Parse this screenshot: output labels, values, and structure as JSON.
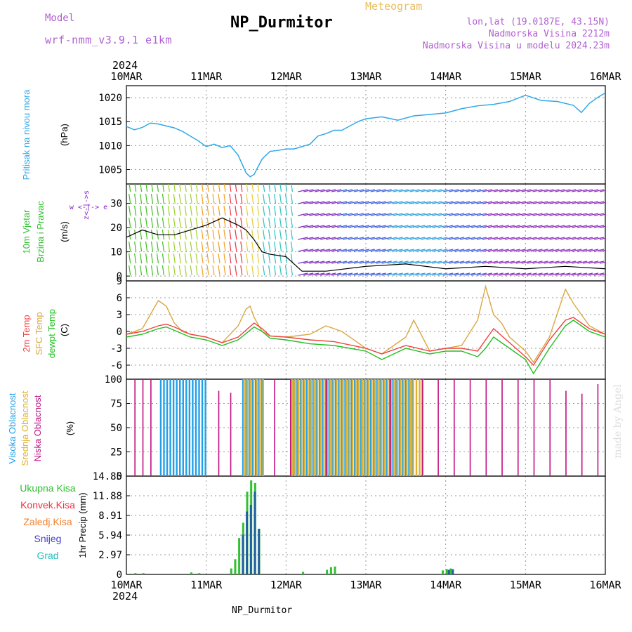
{
  "header": {
    "model_label": "Model",
    "model": "wrf-nmm_v3.9.1 e1km",
    "title": "NP_Durmitor",
    "chart_type": "Meteogram",
    "lonlat": "lon,lat (19.0187E, 43.15N)",
    "elevation": "Nadmorska Visina 2212m",
    "elevation_model": "Nadmorska Visina u modelu 2024.23m"
  },
  "footer": {
    "station": "NP_Durmitor",
    "watermark": "made by Angel"
  },
  "colors": {
    "pressure": "#30a8e8",
    "temp": "#f04040",
    "sfc": "#d8a840",
    "dewpt": "#20c020",
    "cloud_high": "#20a0e8",
    "cloud_mid": "#e0b030",
    "cloud_low": "#c01080",
    "rain_total": "#30c030",
    "rain_conv": "#f03040",
    "rain_frz": "#f08030",
    "snow": "#4040d0",
    "hail": "#20c0c0",
    "wind_fast": "#f02020",
    "wind_slow": "#8020c0"
  },
  "chart_data": [
    {
      "panel": "pressure",
      "type": "line",
      "year": "2024",
      "x_ticks": [
        "10MAR",
        "11MAR",
        "12MAR",
        "13MAR",
        "14MAR",
        "15MAR",
        "16MAR"
      ],
      "ylabel_left": "Pritisak na nivou mora",
      "ylabel": "(hPa)",
      "yticks": [
        "1005",
        "1010",
        "1015",
        "1020"
      ],
      "ylim": [
        1002,
        1022.5
      ],
      "series": [
        {
          "name": "Pritisak na nivou mora",
          "x": [
            0,
            0.1,
            0.2,
            0.3,
            0.4,
            0.5,
            0.6,
            0.7,
            0.8,
            0.9,
            1.0,
            1.1,
            1.2,
            1.3,
            1.4,
            1.5,
            1.55,
            1.6,
            1.7,
            1.8,
            1.9,
            2.0,
            2.1,
            2.2,
            2.3,
            2.4,
            2.5,
            2.6,
            2.7,
            2.8,
            2.9,
            3.0,
            3.2,
            3.4,
            3.6,
            3.8,
            4.0,
            4.2,
            4.4,
            4.6,
            4.8,
            5.0,
            5.2,
            5.4,
            5.6,
            5.7,
            5.8,
            5.9,
            6.0
          ],
          "values": [
            1014.0,
            1013.3,
            1013.8,
            1014.7,
            1014.5,
            1014.1,
            1013.7,
            1013.0,
            1012.0,
            1011.0,
            1009.8,
            1010.3,
            1009.6,
            1010.0,
            1008.0,
            1004.3,
            1003.5,
            1004.0,
            1007.2,
            1008.8,
            1009.0,
            1009.3,
            1009.3,
            1009.8,
            1010.3,
            1012.0,
            1012.5,
            1013.2,
            1013.2,
            1014.1,
            1015.0,
            1015.6,
            1016.0,
            1015.3,
            1016.2,
            1016.5,
            1016.8,
            1017.7,
            1018.3,
            1018.6,
            1019.2,
            1020.5,
            1019.4,
            1019.2,
            1018.4,
            1016.9,
            1018.8,
            1020.0,
            1021.0
          ]
        }
      ]
    },
    {
      "panel": "wind",
      "type": "line",
      "ylabel_left": [
        "10m Vjetar",
        "Brzina i Pravac"
      ],
      "ylabel": "(m/s)",
      "compass": "w <-|-> e",
      "compass_ns": "z<-|->s",
      "yticks": [
        "0",
        "10",
        "20",
        "30"
      ],
      "ylim": [
        -2,
        38
      ],
      "series": [
        {
          "name": "10m Vjetar Brzina",
          "x": [
            0,
            0.2,
            0.4,
            0.6,
            0.8,
            1.0,
            1.2,
            1.4,
            1.5,
            1.6,
            1.7,
            1.8,
            2.0,
            2.1,
            2.2,
            2.5,
            3.0,
            3.5,
            4.0,
            4.5,
            5.0,
            5.5,
            6.0
          ],
          "values": [
            16,
            19,
            17,
            17,
            19,
            21,
            24,
            21,
            19,
            15,
            10,
            9,
            8,
            5,
            2,
            2,
            4,
            5,
            3,
            4,
            3,
            4,
            3
          ]
        }
      ]
    },
    {
      "panel": "temperature",
      "type": "line",
      "ylabel_left": [
        "2m Temp",
        "SFC Temp",
        "dewpt Temp"
      ],
      "ylabel": "(C)",
      "yticks": [
        "-6",
        "-3",
        "0",
        "3",
        "6",
        "9"
      ],
      "ylim": [
        -8.5,
        9
      ],
      "series": [
        {
          "name": "2m Temp",
          "x": [
            0,
            0.2,
            0.4,
            0.5,
            0.6,
            0.8,
            1.0,
            1.2,
            1.4,
            1.6,
            1.7,
            1.8,
            2.0,
            2.3,
            2.6,
            3.0,
            3.2,
            3.5,
            3.8,
            4.0,
            4.2,
            4.4,
            4.5,
            4.6,
            4.8,
            5.0,
            5.1,
            5.3,
            5.5,
            5.6,
            5.8,
            6.0
          ],
          "values": [
            -0.5,
            0,
            1.0,
            1.3,
            0.8,
            -0.5,
            -1.0,
            -2.0,
            -1.0,
            1.5,
            0.5,
            -0.8,
            -1.0,
            -1.5,
            -1.8,
            -3.0,
            -4.0,
            -2.5,
            -3.5,
            -3.0,
            -3.0,
            -3.5,
            -1.5,
            0.5,
            -2.0,
            -4.5,
            -6.0,
            -1.5,
            2.0,
            2.5,
            0.5,
            -0.5
          ]
        },
        {
          "name": "SFC Temp",
          "x": [
            0,
            0.2,
            0.3,
            0.4,
            0.5,
            0.6,
            0.7,
            0.8,
            1.0,
            1.2,
            1.4,
            1.5,
            1.55,
            1.6,
            1.7,
            1.8,
            2.0,
            2.3,
            2.5,
            2.7,
            3.0,
            3.2,
            3.5,
            3.6,
            3.8,
            4.0,
            4.2,
            4.4,
            4.5,
            4.6,
            4.7,
            4.8,
            5.0,
            5.1,
            5.3,
            5.5,
            5.6,
            5.8,
            6.0
          ],
          "values": [
            -0.5,
            0.5,
            3.0,
            5.5,
            4.5,
            1.5,
            0,
            -0.5,
            -1.0,
            -2.0,
            1.0,
            4.0,
            4.5,
            2.5,
            0,
            -0.8,
            -1.0,
            -0.5,
            1.0,
            0,
            -3.0,
            -4.0,
            -1.0,
            2.0,
            -3.5,
            -3.0,
            -2.5,
            2.0,
            8.0,
            3.0,
            1.5,
            -1.0,
            -3.5,
            -5.5,
            -1.0,
            7.5,
            5.0,
            1.0,
            -0.5
          ]
        },
        {
          "name": "dewpt Temp",
          "x": [
            0,
            0.2,
            0.4,
            0.5,
            0.6,
            0.8,
            1.0,
            1.2,
            1.4,
            1.6,
            1.7,
            1.8,
            2.0,
            2.3,
            2.6,
            3.0,
            3.2,
            3.5,
            3.8,
            4.0,
            4.2,
            4.4,
            4.5,
            4.6,
            4.8,
            5.0,
            5.1,
            5.3,
            5.5,
            5.6,
            5.8,
            6.0
          ],
          "values": [
            -1.0,
            -0.5,
            0.5,
            0.8,
            0.2,
            -1.0,
            -1.5,
            -2.5,
            -1.5,
            0.8,
            0,
            -1.2,
            -1.5,
            -2.2,
            -2.5,
            -3.5,
            -5.0,
            -3.0,
            -4.0,
            -3.5,
            -3.5,
            -4.5,
            -3.0,
            -1.0,
            -3.0,
            -5.0,
            -7.5,
            -3.0,
            1.0,
            2.0,
            0,
            -1.0
          ]
        }
      ]
    },
    {
      "panel": "clouds",
      "type": "bar",
      "ylabel_left": [
        "Visoka Oblacnost",
        "Srednja Oblacnost",
        "Niska Oblacnost"
      ],
      "ylabel": "(%)",
      "yticks": [
        "0",
        "25",
        "50",
        "75",
        "100"
      ],
      "ylim": [
        0,
        100
      ],
      "series": [
        {
          "name": "Visoka Oblacnost",
          "ranges": [
            [
              0.42,
              1.0,
              100
            ],
            [
              1.45,
              1.7,
              100
            ],
            [
              2.05,
              3.6,
              100
            ]
          ],
          "values_note": "100"
        },
        {
          "name": "Srednja Oblacnost",
          "ranges": [
            [
              1.45,
              1.7,
              100
            ],
            [
              2.05,
              3.7,
              100
            ]
          ]
        },
        {
          "name": "Niska Oblacnost",
          "x": [
            0.1,
            0.2,
            0.3,
            1.15,
            1.3,
            1.85,
            2.05,
            2.5,
            3.3,
            3.7,
            3.9,
            4.1,
            4.3,
            4.5,
            4.7,
            4.9,
            5.1,
            5.3,
            5.5,
            5.7,
            5.9
          ],
          "values": [
            100,
            100,
            100,
            88,
            86,
            100,
            100,
            100,
            100,
            100,
            100,
            100,
            100,
            100,
            100,
            100,
            100,
            100,
            88,
            85,
            95
          ]
        }
      ]
    },
    {
      "panel": "precip",
      "type": "bar",
      "ylabel_left": [
        "Ukupna Kisa",
        "Konvek.Kisa",
        "Zaledj.Kisa",
        "Snijeg",
        "Grad"
      ],
      "ylabel": "1hr Precip (mm)",
      "yticks": [
        "0",
        "2.97",
        "5.94",
        "8.91",
        "11.88",
        "14.85"
      ],
      "ylim": [
        0,
        14.85
      ],
      "series": [
        {
          "name": "Ukupna Kisa",
          "x": [
            1.3,
            1.35,
            1.4,
            1.45,
            1.5,
            1.55,
            1.6,
            1.65,
            2.2,
            2.5,
            2.55,
            2.6,
            3.95,
            4.0,
            4.05,
            0.1,
            0.2,
            0.8,
            0.9
          ],
          "values": [
            0.9,
            2.3,
            5.5,
            7.8,
            12.5,
            14.2,
            13.8,
            6.9,
            0.4,
            0.7,
            1.1,
            1.2,
            0.6,
            0.8,
            0.9,
            0.2,
            0.2,
            0.3,
            0.2
          ]
        },
        {
          "name": "Snijeg",
          "x": [
            1.42,
            1.47,
            1.52,
            1.57,
            1.62,
            4.0,
            4.05
          ],
          "values": [
            6.0,
            9.5,
            10.5,
            12.5,
            6.9,
            0.7,
            0.8
          ]
        }
      ]
    }
  ]
}
